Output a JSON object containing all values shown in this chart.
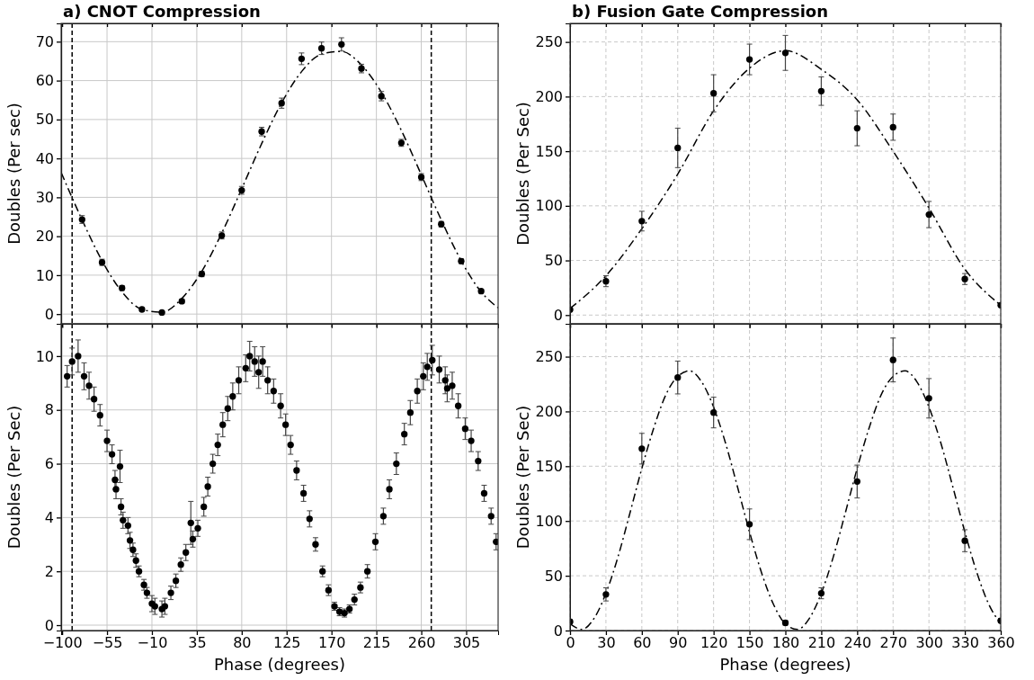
{
  "chart_data": [
    {
      "type": "scatter",
      "title": "a) CNOT Compression",
      "ylabel": "Doubles (Per sec)",
      "xlim": [
        -101,
        337
      ],
      "ylim": [
        -2.5,
        74.7
      ],
      "xticks": [
        -100,
        -55,
        -10,
        35,
        80,
        125,
        170,
        215,
        260,
        305
      ],
      "yticks": [
        0,
        10,
        20,
        30,
        40,
        50,
        60,
        70
      ],
      "grid": true,
      "tick_labels": "y",
      "ref_lines": [
        {
          "axis": "x",
          "value": -90,
          "color": "#000000",
          "line_style": "dashed"
        },
        {
          "axis": "x",
          "value": 270,
          "color": "#000000",
          "line_style": "dashed"
        }
      ],
      "series": [
        {
          "type": "scatter",
          "color": "#000000",
          "marker": "circle",
          "x": [
            -80,
            -60,
            -40,
            -20,
            0,
            20,
            40,
            60,
            80,
            100,
            120,
            140,
            160,
            180,
            200,
            220,
            240,
            260,
            280,
            300,
            320
          ],
          "values": [
            24.3,
            13.3,
            6.7,
            1.2,
            0.4,
            3.3,
            10.3,
            20.2,
            31.8,
            46.9,
            54.2,
            65.6,
            68.3,
            69.3,
            63.1,
            56.0,
            44.0,
            35.2,
            23.1,
            13.6,
            5.9
          ],
          "errors": [
            1,
            0.8,
            0.6,
            0.4,
            0.3,
            0.5,
            0.7,
            0.9,
            1,
            1.1,
            1.3,
            1.5,
            1.6,
            1.7,
            1.1,
            1.2,
            0.9,
            0.9,
            0.7,
            0.6,
            0.5
          ]
        },
        {
          "type": "line",
          "color": "#000000",
          "line_style": "dashed",
          "x": [
            -101,
            -80,
            -60,
            -40,
            -20,
            0,
            20,
            40,
            60,
            80,
            100,
            120,
            140,
            160,
            180,
            200,
            220,
            240,
            260,
            280,
            300,
            320,
            337
          ],
          "values": [
            36.4,
            24.2,
            13.7,
            5.7,
            1.2,
            0.5,
            4.0,
            11.0,
            20.8,
            32.2,
            43.8,
            54.3,
            62.3,
            66.8,
            67.5,
            64.0,
            57.0,
            47.2,
            35.8,
            24.2,
            13.7,
            5.7,
            1.6
          ]
        }
      ]
    },
    {
      "type": "scatter",
      "xlabel": "Phase (degrees)",
      "ylabel": "Doubles (Per Sec)",
      "xlim": [
        -101,
        337
      ],
      "ylim": [
        -0.2,
        11.2
      ],
      "xticks": [
        {
          "value": -100,
          "label": "−100"
        },
        {
          "value": -55,
          "label": "−55"
        },
        {
          "value": -10,
          "label": "−10"
        },
        35,
        80,
        125,
        170,
        215,
        260,
        305
      ],
      "yticks": [
        0,
        2,
        4,
        6,
        8,
        10
      ],
      "grid": true,
      "ref_lines": [
        {
          "axis": "x",
          "value": -90,
          "color": "#000000",
          "line_style": "dashed"
        },
        {
          "axis": "x",
          "value": 270,
          "color": "#000000",
          "line_style": "dashed"
        }
      ],
      "series": [
        {
          "type": "scatter",
          "color": "#000000",
          "marker": "circle",
          "x": [
            -95,
            -90,
            -84,
            -78,
            -73,
            -68,
            -62,
            -55,
            -50,
            -47,
            -46,
            -42,
            -41,
            -39,
            -34,
            -32,
            -29,
            -26,
            -23,
            -18,
            -15,
            -10,
            -7,
            0,
            3,
            9,
            14,
            19,
            24,
            29,
            31,
            36,
            42,
            46,
            51,
            56,
            61,
            66,
            71,
            77,
            84,
            88,
            93,
            97,
            101,
            106,
            112,
            119,
            124,
            129,
            135,
            142,
            148,
            154,
            161,
            167,
            173,
            178,
            183,
            188,
            193,
            199,
            206,
            214,
            222,
            228,
            235,
            243,
            249,
            256,
            262,
            266,
            271,
            278,
            284,
            286,
            291,
            297,
            304,
            310,
            317,
            323,
            330,
            335
          ],
          "values": [
            9.25,
            9.8,
            10.0,
            9.25,
            8.9,
            8.4,
            7.8,
            6.85,
            6.35,
            5.4,
            5.05,
            5.9,
            4.4,
            3.9,
            3.7,
            3.15,
            2.8,
            2.4,
            2.0,
            1.5,
            1.2,
            0.8,
            0.7,
            0.6,
            0.7,
            1.2,
            1.65,
            2.25,
            2.7,
            3.8,
            3.2,
            3.6,
            4.4,
            5.15,
            6.0,
            6.7,
            7.45,
            8.05,
            8.5,
            9.1,
            9.55,
            10.0,
            9.8,
            9.4,
            9.8,
            9.1,
            8.7,
            8.15,
            7.45,
            6.7,
            5.75,
            4.9,
            3.95,
            3.0,
            2.0,
            1.3,
            0.7,
            0.5,
            0.45,
            0.6,
            0.95,
            1.4,
            2.0,
            3.1,
            4.05,
            5.05,
            6.0,
            7.1,
            7.9,
            8.7,
            9.25,
            9.6,
            9.85,
            9.5,
            9.1,
            8.8,
            8.9,
            8.15,
            7.3,
            6.85,
            6.1,
            4.9,
            4.05,
            3.1
          ],
          "errors": [
            0.4,
            0.5,
            0.6,
            0.5,
            0.5,
            0.45,
            0.4,
            0.4,
            0.35,
            0.35,
            0.35,
            0.6,
            0.3,
            0.3,
            0.3,
            0.3,
            0.25,
            0.25,
            0.2,
            0.2,
            0.2,
            0.3,
            0.3,
            0.3,
            0.3,
            0.25,
            0.25,
            0.25,
            0.3,
            0.8,
            0.3,
            0.3,
            0.35,
            0.35,
            0.35,
            0.4,
            0.45,
            0.45,
            0.5,
            0.5,
            0.5,
            0.55,
            0.55,
            0.6,
            0.55,
            0.5,
            0.45,
            0.45,
            0.4,
            0.35,
            0.35,
            0.3,
            0.3,
            0.25,
            0.2,
            0.2,
            0.15,
            0.15,
            0.15,
            0.15,
            0.2,
            0.2,
            0.25,
            0.3,
            0.3,
            0.35,
            0.4,
            0.4,
            0.45,
            0.45,
            0.5,
            0.5,
            0.55,
            0.5,
            0.5,
            0.5,
            0.5,
            0.45,
            0.4,
            0.4,
            0.35,
            0.3,
            0.3,
            0.3
          ]
        }
      ]
    },
    {
      "type": "scatter",
      "title": "b) Fusion Gate Compression",
      "ylabel": "Doubles (Per Sec)",
      "xlim": [
        0,
        360
      ],
      "ylim": [
        -8,
        267
      ],
      "xticks": [
        0,
        30,
        60,
        90,
        120,
        150,
        180,
        210,
        240,
        270,
        300,
        330,
        360
      ],
      "yticks": [
        0,
        50,
        100,
        150,
        200,
        250
      ],
      "grid": true,
      "tick_labels": "y",
      "series": [
        {
          "type": "scatter",
          "color": "#000000",
          "marker": "circle",
          "x": [
            0,
            30,
            60,
            90,
            120,
            150,
            180,
            210,
            240,
            270,
            300,
            330,
            360
          ],
          "values": [
            5,
            31,
            86,
            153,
            203,
            234,
            240,
            205,
            171,
            172,
            92,
            33,
            9
          ],
          "errors": [
            1,
            5,
            9,
            18,
            17,
            14,
            16,
            13,
            16,
            12,
            12,
            5,
            1
          ]
        },
        {
          "type": "line",
          "color": "#000000",
          "line_style": "dashed",
          "x": [
            0,
            30,
            60,
            90,
            120,
            150,
            180,
            210,
            240,
            270,
            300,
            330,
            360
          ],
          "values": [
            6,
            36,
            79,
            129,
            187,
            226,
            242,
            225,
            197,
            150,
            98,
            42,
            9
          ]
        }
      ]
    },
    {
      "type": "scatter",
      "xlabel": "Phase (degrees)",
      "ylabel": "Doubles (Per Sec)",
      "xlim": [
        0,
        360
      ],
      "ylim": [
        0,
        280
      ],
      "xticks": [
        0,
        30,
        60,
        90,
        120,
        150,
        180,
        210,
        240,
        270,
        300,
        330,
        360
      ],
      "yticks": [
        0,
        50,
        100,
        150,
        200,
        250
      ],
      "grid": true,
      "series": [
        {
          "type": "scatter",
          "color": "#000000",
          "marker": "circle",
          "x": [
            0,
            30,
            60,
            90,
            120,
            150,
            180,
            210,
            240,
            270,
            300,
            330,
            360
          ],
          "values": [
            8,
            33,
            166,
            231,
            199,
            97,
            7,
            34,
            136,
            247,
            212,
            82,
            9
          ],
          "errors": [
            2,
            6,
            14,
            15,
            14,
            14,
            2,
            5,
            15,
            20,
            18,
            10,
            2
          ]
        },
        {
          "type": "line",
          "color": "#000000",
          "line_style": "dashed",
          "x": [
            0,
            10,
            20,
            30,
            40,
            50,
            60,
            70,
            80,
            90,
            100,
            110,
            120,
            130,
            140,
            150,
            160,
            170,
            180,
            190,
            200,
            210,
            220,
            230,
            240,
            250,
            260,
            270,
            280,
            290,
            300,
            310,
            320,
            330,
            340,
            350,
            360
          ],
          "values": [
            6,
            1,
            11,
            34,
            67,
            107,
            148,
            185,
            215,
            232,
            237,
            227,
            204,
            171,
            131,
            90,
            53,
            24,
            6,
            1,
            11,
            34,
            67,
            107,
            148,
            185,
            215,
            232,
            237,
            227,
            204,
            171,
            131,
            90,
            53,
            24,
            6
          ]
        }
      ]
    }
  ]
}
